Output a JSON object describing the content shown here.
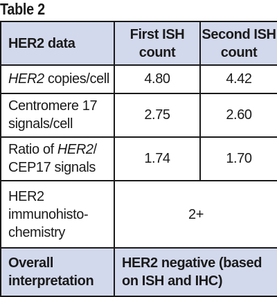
{
  "caption": "Table 2",
  "header": {
    "col1": "HER2 data",
    "col2": "First ISH count",
    "col3": "Second ISH count"
  },
  "rows": [
    {
      "label_italic": "HER2",
      "label_rest": " copies/cell",
      "first": "4.80",
      "second": "4.42"
    },
    {
      "label": "Centromere 17 signals/cell",
      "first": "2.75",
      "second": "2.60"
    },
    {
      "label_pre": "Ratio of ",
      "label_italic": "HER2",
      "label_post": "/ CEP17 signals",
      "first": "1.74",
      "second": "1.70"
    },
    {
      "label": "HER2 immunohisto-chemistry",
      "merged_value": "2+"
    }
  ],
  "footer": {
    "label": "Overall interpretation",
    "value": "HER2 negative (based on ISH and IHC)"
  },
  "colors": {
    "header_background": "#d3d9ec",
    "border": "#1a1a1a"
  }
}
